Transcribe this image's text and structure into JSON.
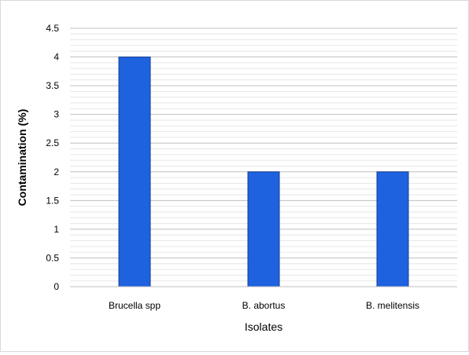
{
  "chart_data": {
    "type": "bar",
    "title": "",
    "categories": [
      "Brucella spp",
      "B. abortus",
      "B. melitensis"
    ],
    "values": [
      4,
      2,
      2
    ],
    "xlabel": "Isolates",
    "ylabel": "Contamination (%)",
    "ylim": [
      0,
      4.5
    ],
    "yticks": [
      "0",
      "0.5",
      "1",
      "1.5",
      "2",
      "2.5",
      "3",
      "3.5",
      "4",
      "4.5"
    ],
    "minor_gridlines": true,
    "grid": true,
    "legend": "none",
    "colors": {
      "bar_fill": "#1f62e0",
      "bar_stroke": "#143f94",
      "major_grid": "#bfbfbf",
      "minor_grid": "#e6e6e6"
    }
  }
}
